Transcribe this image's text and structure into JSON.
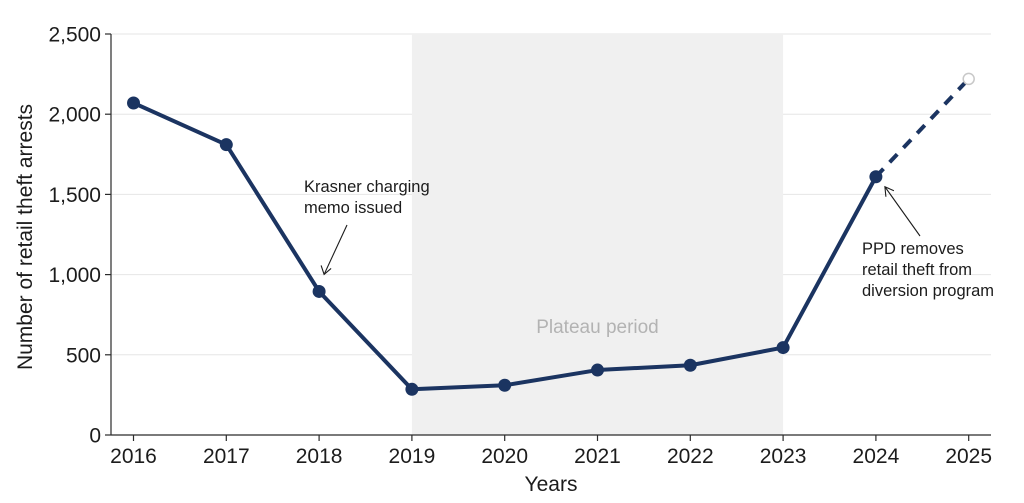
{
  "chart_data": {
    "type": "line",
    "xlabel": "Years",
    "ylabel": "Number of retail theft arrests",
    "x": [
      2016,
      2017,
      2018,
      2019,
      2020,
      2021,
      2022,
      2023,
      2024,
      2025
    ],
    "x_tick_labels": [
      "2016",
      "2017",
      "2018",
      "2019",
      "2020",
      "2021",
      "2022",
      "2023",
      "2024",
      "2025"
    ],
    "ylim": [
      0,
      2500
    ],
    "y_ticks": [
      0,
      500,
      1000,
      1500,
      2000,
      2500
    ],
    "y_tick_labels": [
      "0",
      "500",
      "1,000",
      "1,500",
      "2,000",
      "2,500"
    ],
    "series": [
      {
        "values": [
          2070,
          1810,
          895,
          285,
          310,
          405,
          435,
          545,
          1610
        ],
        "x": [
          2016,
          2017,
          2018,
          2019,
          2020,
          2021,
          2022,
          2023,
          2024
        ],
        "style": "solid",
        "color": "#1b3461"
      },
      {
        "values": [
          1610,
          2220
        ],
        "x": [
          2024,
          2025
        ],
        "style": "dashed",
        "projected": true,
        "color": "#1b3461"
      }
    ],
    "shaded_region": {
      "x_start": 2019,
      "x_end": 2023,
      "label": "Plateau period",
      "color": "#f0f0f0"
    },
    "annotations": [
      {
        "lines": [
          "Krasner charging",
          "memo issued"
        ],
        "target_x": 2018,
        "target_y": 895
      },
      {
        "lines": [
          "PPD removes",
          "retail theft from",
          "diversion program"
        ],
        "target_x": 2024,
        "target_y": 1610
      }
    ],
    "grid": "horizontal",
    "legend": "none"
  }
}
